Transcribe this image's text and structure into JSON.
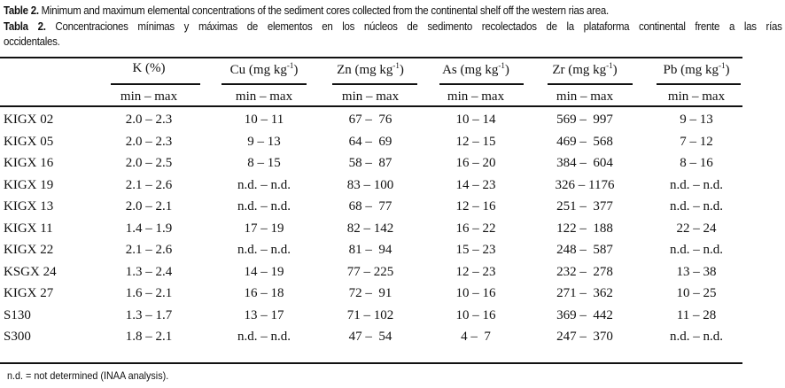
{
  "caption_en": {
    "label": "Table 2.",
    "text": " Minimum and maximum elemental concentrations of the sediment cores collected from the continental shelf off the western rias area."
  },
  "caption_es": {
    "label": "Tabla 2.",
    "text": " Concentraciones mínimas y máximas de elementos en los núcleos de sedimento recolectados de la plataforma continental frente a las rías",
    "text2": "occidentales."
  },
  "columns": [
    {
      "el": "K (%)",
      "unit": ""
    },
    {
      "el": "Cu (mg kg",
      "unit": "-1"
    },
    {
      "el": "Zn (mg kg",
      "unit": "-1"
    },
    {
      "el": "As  (mg kg",
      "unit": "-1"
    },
    {
      "el": "Zr (mg kg",
      "unit": "-1"
    },
    {
      "el": "Pb (mg kg",
      "unit": "-1"
    }
  ],
  "subheader": "min – max",
  "rows": [
    {
      "name": "KIGX 02",
      "v": [
        "2.0 – 2.3",
        "10 – 11",
        "67 –  76",
        "10 – 14",
        "569 –  997",
        "9 – 13"
      ]
    },
    {
      "name": "KIGX 05",
      "v": [
        "2.0 – 2.3",
        "9 – 13",
        "64 –  69",
        "12 – 15",
        "469 –  568",
        "7 – 12"
      ]
    },
    {
      "name": "KIGX 16",
      "v": [
        "2.0 – 2.5",
        "8 – 15",
        "58 –  87",
        "16 – 20",
        "384 –  604",
        "8 – 16"
      ]
    },
    {
      "name": "KIGX 19",
      "v": [
        "2.1 – 2.6",
        "n.d. – n.d.",
        "83 – 100",
        "14 – 23",
        "326 – 1176",
        "n.d. – n.d."
      ]
    },
    {
      "name": "KIGX 13",
      "v": [
        "2.0 – 2.1",
        "n.d. – n.d.",
        "68 –  77",
        "12 – 16",
        "251 –  377",
        "n.d. – n.d."
      ]
    },
    {
      "name": "KIGX 11",
      "v": [
        "1.4 – 1.9",
        "17 – 19",
        "82 – 142",
        "16 – 22",
        "122 –  188",
        "22 – 24"
      ]
    },
    {
      "name": "KIGX 22",
      "v": [
        "2.1 – 2.6",
        "n.d. – n.d.",
        "81 –  94",
        "15 – 23",
        "248 –  587",
        "n.d. – n.d."
      ]
    },
    {
      "name": "KSGX 24",
      "v": [
        "1.3 – 2.4",
        "14 – 19",
        "77 – 225",
        "12 – 23",
        "232 –  278",
        "13 – 38"
      ]
    },
    {
      "name": "KIGX 27",
      "v": [
        "1.6 – 2.1",
        "16 – 18",
        "72 –  91",
        "10 – 16",
        "271 –  362",
        "10 – 25"
      ]
    },
    {
      "name": "S130",
      "v": [
        "1.3 – 1.7",
        "13 – 17",
        "71 – 102",
        "10 – 16",
        "369 –  442",
        "11 – 28"
      ]
    },
    {
      "name": "S300",
      "v": [
        "1.8 – 2.1",
        "n.d. – n.d.",
        "47 –  54",
        "4 –  7",
        "247 –  370",
        "n.d. – n.d."
      ]
    }
  ],
  "footnote": "n.d. = not determined (INAA analysis)."
}
